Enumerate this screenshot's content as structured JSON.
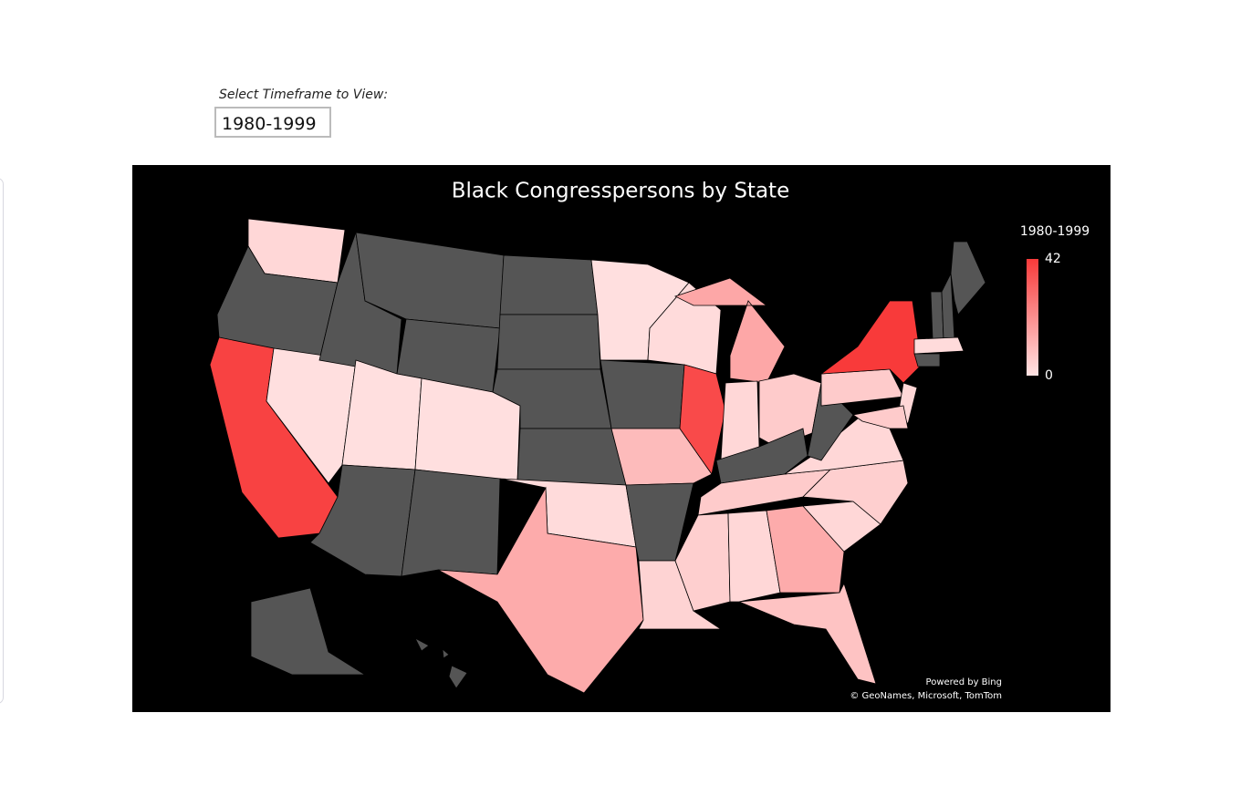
{
  "controls": {
    "label": "Select Timeframe to View:",
    "selected": "1980-1999"
  },
  "chart_data": {
    "type": "choropleth",
    "title": "Black Congresspersons by State",
    "legend_title": "1980-1999",
    "colorlim": [
      0,
      42
    ],
    "colorticks": [
      0,
      42
    ],
    "color_min": "#ffe3e3",
    "color_max": "#f83a3a",
    "null_color": "#555555",
    "values": [
      3,
      null,
      40,
      1,
      null,
      null,
      null,
      1,
      1,
      null,
      null,
      null,
      null,
      null,
      null,
      2,
      14,
      1,
      null,
      10,
      null,
      4,
      2,
      38,
      15,
      3,
      6,
      null,
      6,
      5,
      3,
      14,
      8,
      3,
      5,
      3,
      null,
      6,
      42,
      3,
      6,
      null,
      null,
      null,
      2,
      null,
      null,
      null
    ],
    "attribution": [
      "Powered by Bing",
      "© GeoNames, Microsoft, TomTom"
    ]
  }
}
